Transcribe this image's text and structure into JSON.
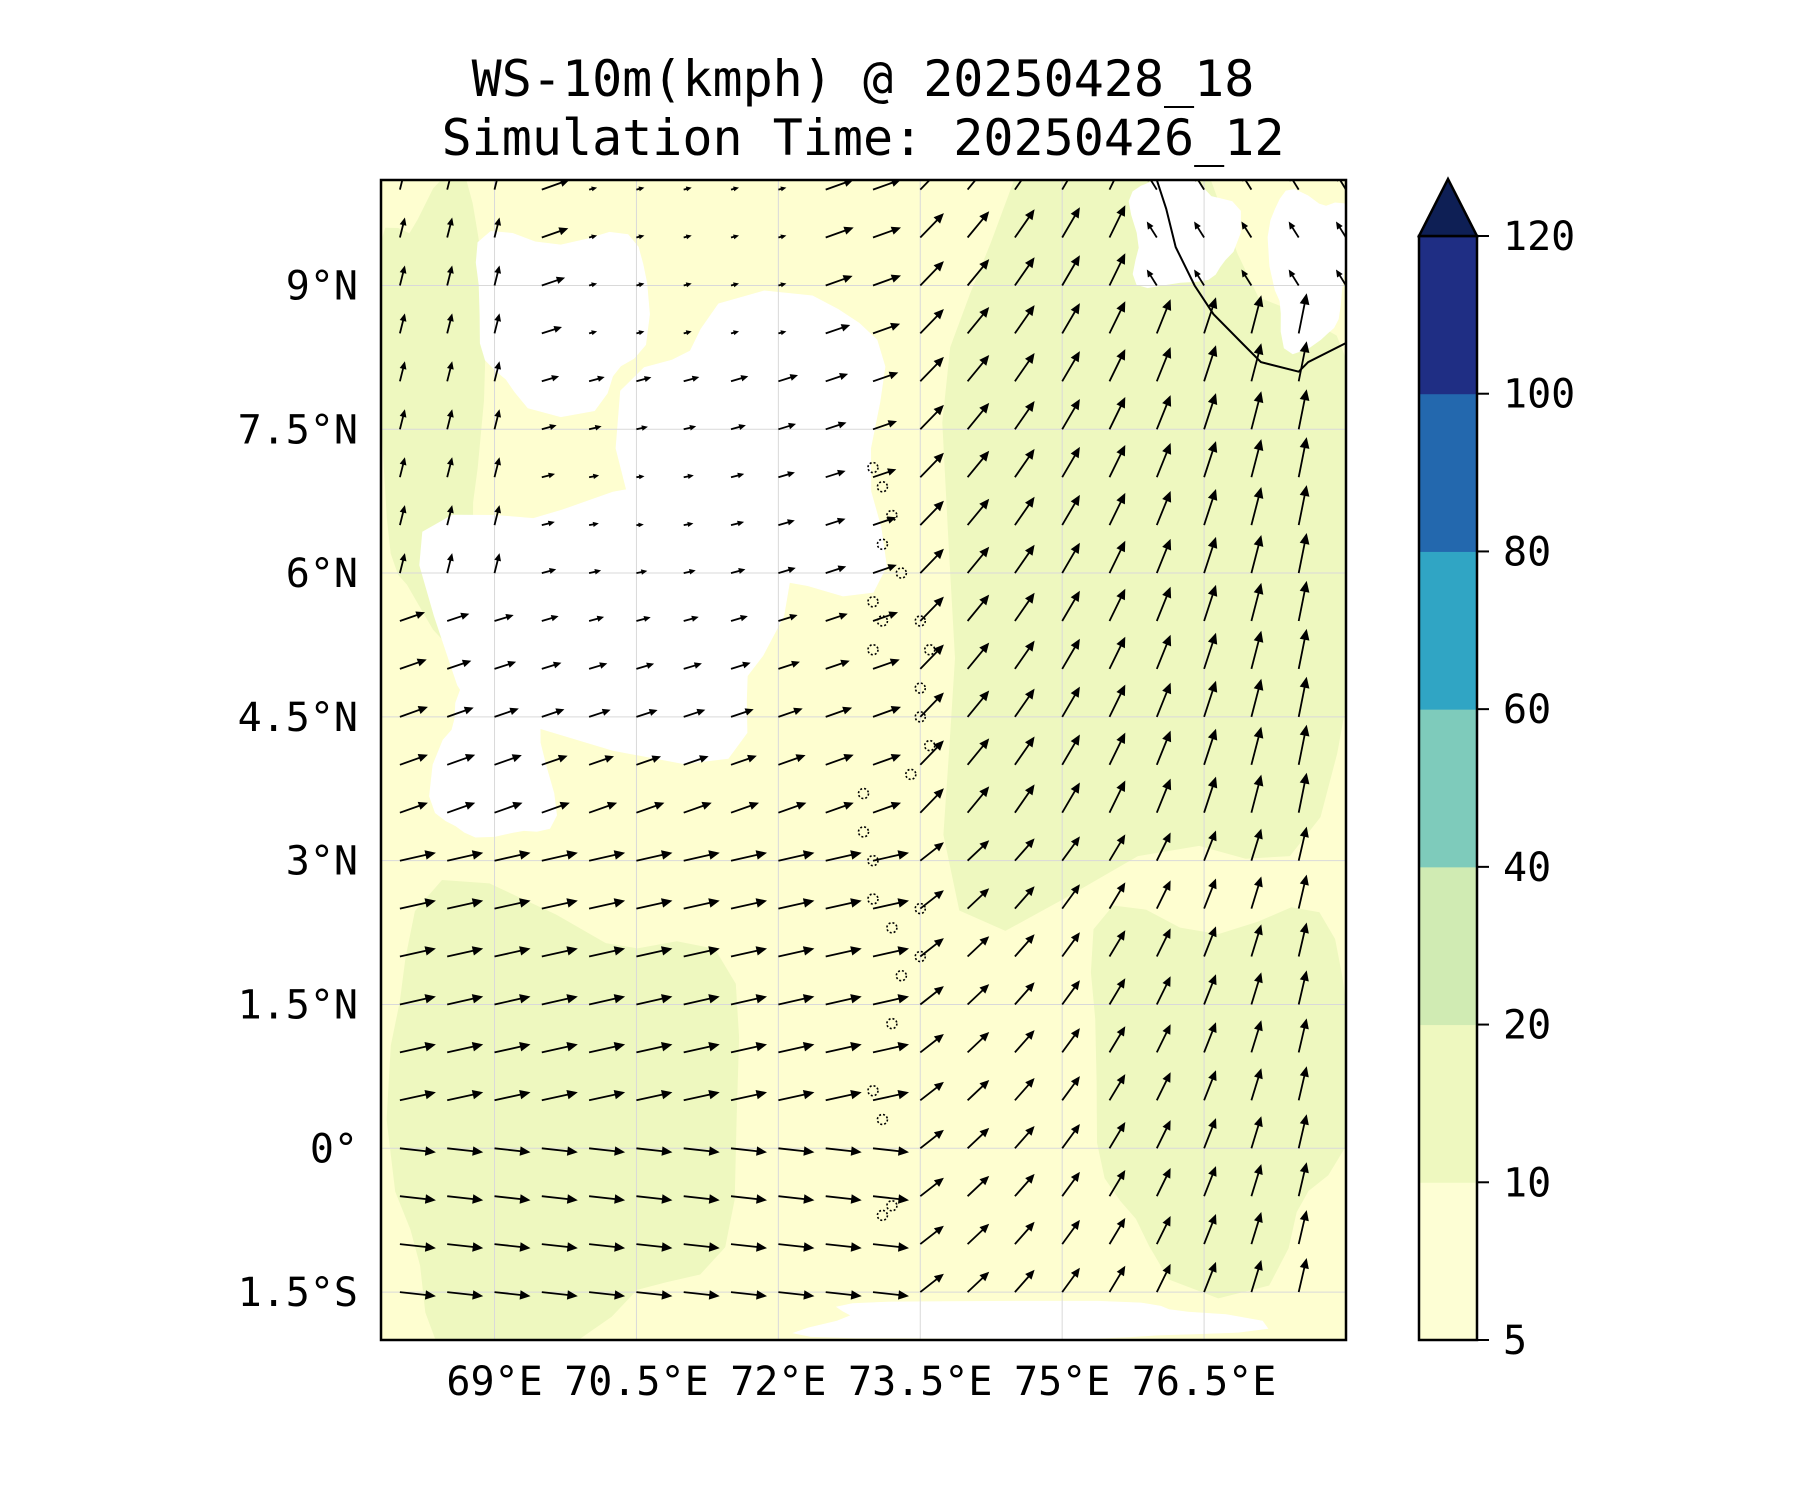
{
  "title": {
    "line1": "WS-10m(kmph) @ 20250428_18",
    "line2": "Simulation Time: 20250426_12"
  },
  "map": {
    "lon_range": [
      67.8,
      78.0
    ],
    "lat_range": [
      -2.0,
      10.1
    ],
    "lon_ticks": [
      {
        "value": 69.0,
        "label": "69°E"
      },
      {
        "value": 70.5,
        "label": "70.5°E"
      },
      {
        "value": 72.0,
        "label": "72°E"
      },
      {
        "value": 73.5,
        "label": "73.5°E"
      },
      {
        "value": 75.0,
        "label": "75°E"
      },
      {
        "value": 76.5,
        "label": "76.5°E"
      }
    ],
    "lat_ticks": [
      {
        "value": 9.0,
        "label": "9°N"
      },
      {
        "value": 7.5,
        "label": "7.5°N"
      },
      {
        "value": 6.0,
        "label": "6°N"
      },
      {
        "value": 4.5,
        "label": "4.5°N"
      },
      {
        "value": 3.0,
        "label": "3°N"
      },
      {
        "value": 1.5,
        "label": "1.5°N"
      },
      {
        "value": 0.0,
        "label": "0°"
      },
      {
        "value": -1.5,
        "label": "1.5°S"
      }
    ],
    "gridlines": true,
    "grid_color": "#d9d9d9",
    "background_color": "#fefed0"
  },
  "colorbar": {
    "levels": [
      {
        "value": 5,
        "label": "5"
      },
      {
        "value": 10,
        "label": "10"
      },
      {
        "value": 20,
        "label": "20"
      },
      {
        "value": 40,
        "label": "40"
      },
      {
        "value": 60,
        "label": "60"
      },
      {
        "value": 80,
        "label": "80"
      },
      {
        "value": 100,
        "label": "100"
      },
      {
        "value": 120,
        "label": "120"
      }
    ],
    "colors": [
      "#fdfed4",
      "#eef8bf",
      "#d0ebb3",
      "#7ecbbb",
      "#30a5c4",
      "#2368ae",
      "#1f2e84"
    ],
    "extend_color": "#0e1f55",
    "extend": "max"
  },
  "field": {
    "colors": {
      "calm": "#ffffff",
      "light": "#fdfed4",
      "moderate": "#eef8bf"
    },
    "calm_regions": [
      {
        "lon": [
          68.8,
          70.6
        ],
        "lat": [
          7.8,
          9.6
        ]
      },
      {
        "lon": [
          68.4,
          72.1
        ],
        "lat": [
          4.2,
          6.9
        ]
      },
      {
        "lon": [
          70.5,
          73.2
        ],
        "lat": [
          5.8,
          8.8
        ]
      },
      {
        "lon": [
          68.4,
          69.6
        ],
        "lat": [
          3.2,
          4.8
        ]
      },
      {
        "lon": [
          72.3,
          76.8
        ],
        "lat": [
          -1.6,
          -2.0
        ]
      },
      {
        "lon": [
          75.7,
          76.8
        ],
        "lat": [
          9.0,
          10.1
        ]
      },
      {
        "lon": [
          77.2,
          78.0
        ],
        "lat": [
          8.4,
          10.0
        ]
      }
    ],
    "moderate_regions": [
      {
        "lon": [
          73.6,
          78.0
        ],
        "lat": [
          2.5,
          10.1
        ]
      },
      {
        "lon": [
          67.8,
          71.5
        ],
        "lat": [
          -2.0,
          2.6
        ]
      },
      {
        "lon": [
          75.3,
          78.0
        ],
        "lat": [
          -1.2,
          2.6
        ]
      },
      {
        "lon": [
          67.8,
          68.9
        ],
        "lat": [
          5.5,
          10.1
        ]
      }
    ]
  },
  "wind_vectors": {
    "grid": {
      "lon_start": 68.0,
      "lon_step": 0.5,
      "lon_count": 21,
      "lat_start": -1.5,
      "lat_step": 0.5,
      "lat_count": 24
    },
    "units": "kmph",
    "arrow_color": "#000000"
  },
  "coastline": {
    "mainland": [
      [
        76.0,
        10.1
      ],
      [
        76.1,
        9.8
      ],
      [
        76.2,
        9.4
      ],
      [
        76.4,
        9.0
      ],
      [
        76.6,
        8.7
      ],
      [
        76.9,
        8.4
      ],
      [
        77.1,
        8.2
      ],
      [
        77.5,
        8.1
      ],
      [
        77.6,
        8.2
      ],
      [
        78.0,
        8.4
      ]
    ],
    "islands_dotted": [
      [
        73.0,
        7.1
      ],
      [
        73.1,
        6.9
      ],
      [
        73.2,
        6.6
      ],
      [
        73.1,
        6.3
      ],
      [
        73.3,
        6.0
      ],
      [
        73.0,
        5.7
      ],
      [
        73.1,
        5.5
      ],
      [
        73.0,
        5.2
      ],
      [
        73.5,
        5.5
      ],
      [
        73.6,
        5.2
      ],
      [
        73.5,
        4.8
      ],
      [
        73.5,
        4.5
      ],
      [
        73.6,
        4.2
      ],
      [
        73.4,
        3.9
      ],
      [
        72.9,
        3.7
      ],
      [
        72.9,
        3.3
      ],
      [
        73.0,
        3.0
      ],
      [
        73.0,
        2.6
      ],
      [
        73.2,
        2.3
      ],
      [
        73.5,
        2.5
      ],
      [
        73.5,
        2.0
      ],
      [
        73.3,
        1.8
      ],
      [
        73.2,
        1.3
      ],
      [
        73.0,
        0.6
      ],
      [
        73.1,
        0.3
      ],
      [
        73.2,
        -0.6
      ],
      [
        73.1,
        -0.7
      ]
    ]
  }
}
